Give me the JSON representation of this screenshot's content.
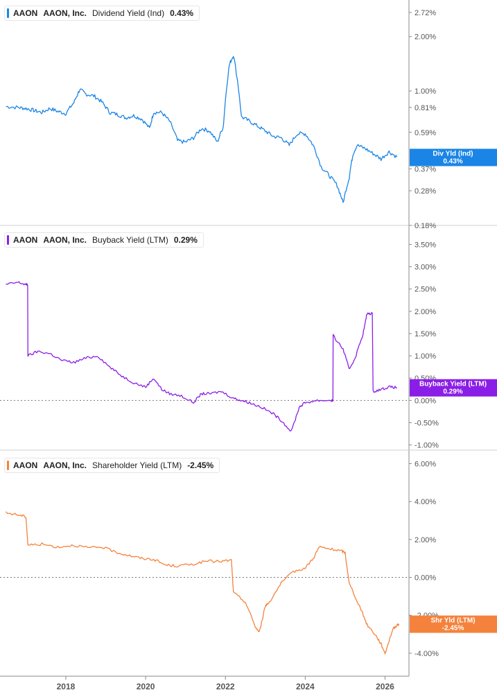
{
  "colors": {
    "div": "#1a85e6",
    "buyback": "#8a1ee6",
    "shareholder": "#f5823c",
    "axis": "#555555",
    "grid": "#d0d0d0"
  },
  "chart_data": [
    {
      "type": "line",
      "ticker": "AAON",
      "company": "AAON, Inc.",
      "metric": "Dividend Yield (Ind)",
      "current": "0.43%",
      "tag_label": "Div Yld (Ind)",
      "tag_value": "0.43%",
      "y_scale": "log",
      "ylim": [
        0.18,
        3.05
      ],
      "y_ticks": [
        2.72,
        2.0,
        1.0,
        0.81,
        0.59,
        0.37,
        0.28,
        0.18
      ],
      "y_tick_labels": [
        "2.72%",
        "2.00%",
        "1.00%",
        "0.81%",
        "0.59%",
        "0.37%",
        "0.28%",
        "0.18%"
      ],
      "x": [
        2016.5,
        2016.8,
        2017.0,
        2017.2,
        2017.4,
        2017.6,
        2017.8,
        2018.0,
        2018.2,
        2018.35,
        2018.5,
        2018.7,
        2018.9,
        2019.1,
        2019.3,
        2019.5,
        2019.7,
        2019.9,
        2020.1,
        2020.2,
        2020.4,
        2020.6,
        2020.8,
        2021.0,
        2021.2,
        2021.4,
        2021.6,
        2021.8,
        2021.95,
        2022.1,
        2022.2,
        2022.4,
        2022.6,
        2022.8,
        2023.0,
        2023.2,
        2023.4,
        2023.6,
        2023.8,
        2024.0,
        2024.2,
        2024.4,
        2024.6,
        2024.8,
        2024.95,
        2025.1,
        2025.2,
        2025.3,
        2025.5,
        2025.7,
        2025.9,
        2026.1,
        2026.3
      ],
      "values": [
        0.82,
        0.81,
        0.8,
        0.78,
        0.76,
        0.8,
        0.77,
        0.75,
        0.86,
        1.02,
        0.96,
        0.94,
        0.87,
        0.76,
        0.74,
        0.71,
        0.73,
        0.7,
        0.62,
        0.76,
        0.76,
        0.68,
        0.53,
        0.52,
        0.55,
        0.62,
        0.6,
        0.52,
        0.64,
        1.4,
        1.58,
        0.72,
        0.68,
        0.64,
        0.6,
        0.56,
        0.55,
        0.5,
        0.58,
        0.58,
        0.5,
        0.38,
        0.34,
        0.3,
        0.24,
        0.33,
        0.45,
        0.5,
        0.48,
        0.45,
        0.42,
        0.46,
        0.43
      ]
    },
    {
      "type": "line",
      "ticker": "AAON",
      "company": "AAON, Inc.",
      "metric": "Buyback Yield (LTM)",
      "current": "0.29%",
      "tag_label": "Buyback Yield (LTM)",
      "tag_value": "0.29%",
      "y_scale": "linear",
      "ylim": [
        -1.1,
        3.85
      ],
      "zero_line": true,
      "y_ticks": [
        3.5,
        3.0,
        2.5,
        2.0,
        1.5,
        1.0,
        0.5,
        0.0,
        -0.5,
        -1.0
      ],
      "y_tick_labels": [
        "3.50%",
        "3.00%",
        "2.50%",
        "2.00%",
        "1.50%",
        "1.00%",
        "0.50%",
        "0.00%",
        "-0.50%",
        "-1.00%"
      ],
      "x": [
        2016.5,
        2016.8,
        2017.0,
        2017.05,
        2017.3,
        2017.6,
        2017.9,
        2018.2,
        2018.5,
        2018.8,
        2019.1,
        2019.4,
        2019.7,
        2020.0,
        2020.2,
        2020.4,
        2020.6,
        2020.9,
        2021.2,
        2021.4,
        2021.6,
        2021.9,
        2022.2,
        2022.4,
        2022.6,
        2022.9,
        2023.2,
        2023.4,
        2023.65,
        2023.85,
        2024.0,
        2024.3,
        2024.65,
        2024.7,
        2024.95,
        2025.1,
        2025.25,
        2025.45,
        2025.55,
        2025.7,
        2025.9,
        2026.1,
        2026.3
      ],
      "values": [
        2.6,
        2.65,
        2.6,
        1.0,
        1.1,
        1.05,
        0.9,
        0.85,
        0.95,
        1.0,
        0.75,
        0.55,
        0.4,
        0.3,
        0.5,
        0.25,
        0.15,
        0.1,
        -0.05,
        0.15,
        0.15,
        0.2,
        0.05,
        0.0,
        -0.05,
        -0.15,
        -0.3,
        -0.45,
        -0.7,
        -0.15,
        -0.05,
        0.0,
        0.0,
        1.45,
        1.15,
        0.7,
        0.95,
        1.5,
        1.95,
        0.2,
        0.25,
        0.3,
        0.29
      ]
    },
    {
      "type": "line",
      "ticker": "AAON",
      "company": "AAON, Inc.",
      "metric": "Shareholder Yield (LTM)",
      "current": "-2.45%",
      "tag_label": "Shr Yld (LTM)",
      "tag_value": "-2.45%",
      "y_scale": "linear",
      "ylim": [
        -5.1,
        6.6
      ],
      "zero_line": true,
      "y_ticks": [
        6,
        4,
        2,
        0,
        -2,
        -4
      ],
      "y_tick_labels": [
        "6.00%",
        "4.00%",
        "2.00%",
        "0.00%",
        "-2.00%",
        "-4.00%"
      ],
      "x": [
        2016.5,
        2016.8,
        2017.0,
        2017.05,
        2017.4,
        2017.8,
        2018.2,
        2018.6,
        2018.9,
        2019.3,
        2019.6,
        2019.9,
        2020.2,
        2020.5,
        2020.8,
        2021.2,
        2021.5,
        2021.9,
        2022.15,
        2022.2,
        2022.5,
        2022.75,
        2022.85,
        2023.0,
        2023.1,
        2023.4,
        2023.7,
        2024.0,
        2024.2,
        2024.35,
        2024.6,
        2024.9,
        2025.0,
        2025.1,
        2025.4,
        2025.55,
        2025.75,
        2025.9,
        2026.0,
        2026.2,
        2026.35
      ],
      "values": [
        3.4,
        3.3,
        3.2,
        1.7,
        1.75,
        1.6,
        1.7,
        1.55,
        1.6,
        1.3,
        1.15,
        1.0,
        0.95,
        0.65,
        0.6,
        0.7,
        0.85,
        0.85,
        0.9,
        -0.8,
        -1.3,
        -2.6,
        -2.9,
        -1.5,
        -1.3,
        -0.3,
        0.3,
        0.5,
        1.0,
        1.6,
        1.5,
        1.4,
        1.3,
        -0.3,
        -1.7,
        -2.5,
        -3.0,
        -3.5,
        -4.0,
        -2.7,
        -2.45
      ]
    }
  ],
  "x_axis": {
    "ticks": [
      2018,
      2020,
      2022,
      2024,
      2026
    ],
    "tick_labels": [
      "2018",
      "2020",
      "2022",
      "2024",
      "2026"
    ],
    "range": [
      2016.35,
      2026.6
    ]
  }
}
